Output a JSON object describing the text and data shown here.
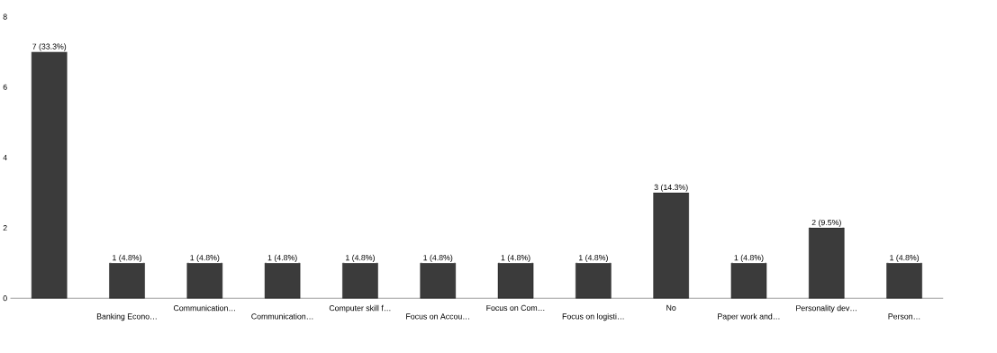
{
  "chart_data": {
    "type": "bar",
    "categories": [
      null,
      "Banking Econo…",
      "Communication…",
      "Communication…",
      "Computer skill f…",
      "Focus on Accou…",
      "Focus on Com…",
      "Focus on logisti…",
      "No",
      "Paper work and…",
      "Personality dev…",
      "Person…"
    ],
    "values": [
      7,
      1,
      1,
      1,
      1,
      1,
      1,
      1,
      3,
      1,
      2,
      1
    ],
    "color": "#3b3b3b",
    "value_labels": [
      "7 (33.3%)",
      "1 (4.8%)",
      "1 (4.8%)",
      "1 (4.8%)",
      "1 (4.8%)",
      "1 (4.8%)",
      "1 (4.8%)",
      "1 (4.8%)",
      "3 (14.3%)",
      "1 (4.8%)",
      "2 (9.5%)",
      "1 (4.8%)"
    ],
    "ylim": [
      0,
      8
    ],
    "yticks": [
      0,
      2,
      4,
      6,
      8
    ]
  }
}
